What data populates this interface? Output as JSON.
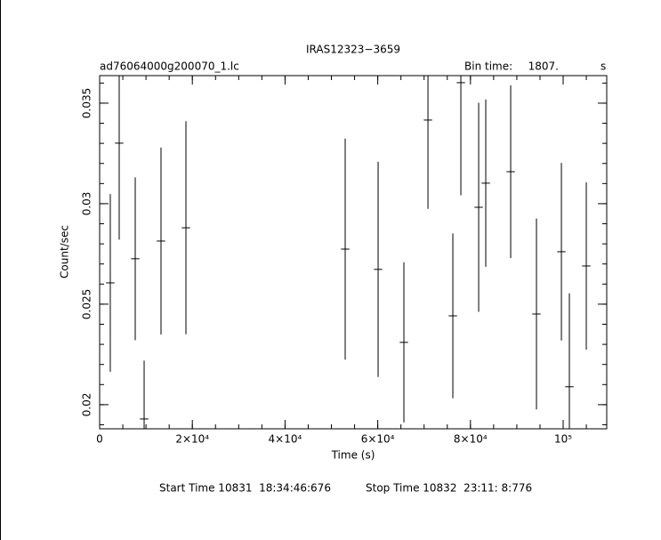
{
  "chart_data": {
    "type": "errorbar",
    "title": "IRAS12323−3659",
    "file_label": "ad76064000g200070_1.lc",
    "bin_time_caption": "Bin time:",
    "bin_time": {
      "value": 1807,
      "label": "1807."
    },
    "bin_time_unit": "s",
    "x_label": "Time (s)",
    "y_label": "Count/sec",
    "start_time": "Start Time 10831  18:34:46:676",
    "stop_time": "Stop Time 10832  23:11: 8:776",
    "color": "#000000",
    "x": [
      2300,
      4220,
      7680,
      9600,
      13240,
      18620,
      52975,
      60080,
      65640,
      70830,
      76200,
      77930,
      81770,
      83300,
      88680,
      94240,
      99620,
      101340,
      104990
    ],
    "series": [
      {
        "values": [
          0.02606,
          0.03301,
          0.02726,
          0.01929,
          0.02814,
          0.0288,
          0.02774,
          0.02673,
          0.0231,
          0.03416,
          0.02442,
          0.03602,
          0.02982,
          0.03102,
          0.03159,
          0.02451,
          0.02761,
          0.02089,
          0.0269
        ],
        "errors": [
          0.00442,
          0.0048,
          0.00405,
          0.0029,
          0.00465,
          0.0053,
          0.0055,
          0.00535,
          0.00398,
          0.00442,
          0.0041,
          0.0056,
          0.0052,
          0.00416,
          0.0043,
          0.00475,
          0.00442,
          0.00465,
          0.00416
        ]
      }
    ],
    "xlim": [
      0,
      109400
    ],
    "ylim": [
      0.0188,
      0.03637
    ],
    "xticks": [
      0,
      {
        "value": 20000,
        "label": "2×10⁴"
      },
      {
        "value": 40000,
        "label": "4×10⁴"
      },
      {
        "value": 60000,
        "label": "6×10⁴"
      },
      {
        "value": 80000,
        "label": "8×10⁴"
      },
      {
        "value": 100000,
        "label": "10⁵"
      }
    ],
    "yticks": [
      0.02,
      0.025,
      0.03,
      0.035
    ]
  }
}
